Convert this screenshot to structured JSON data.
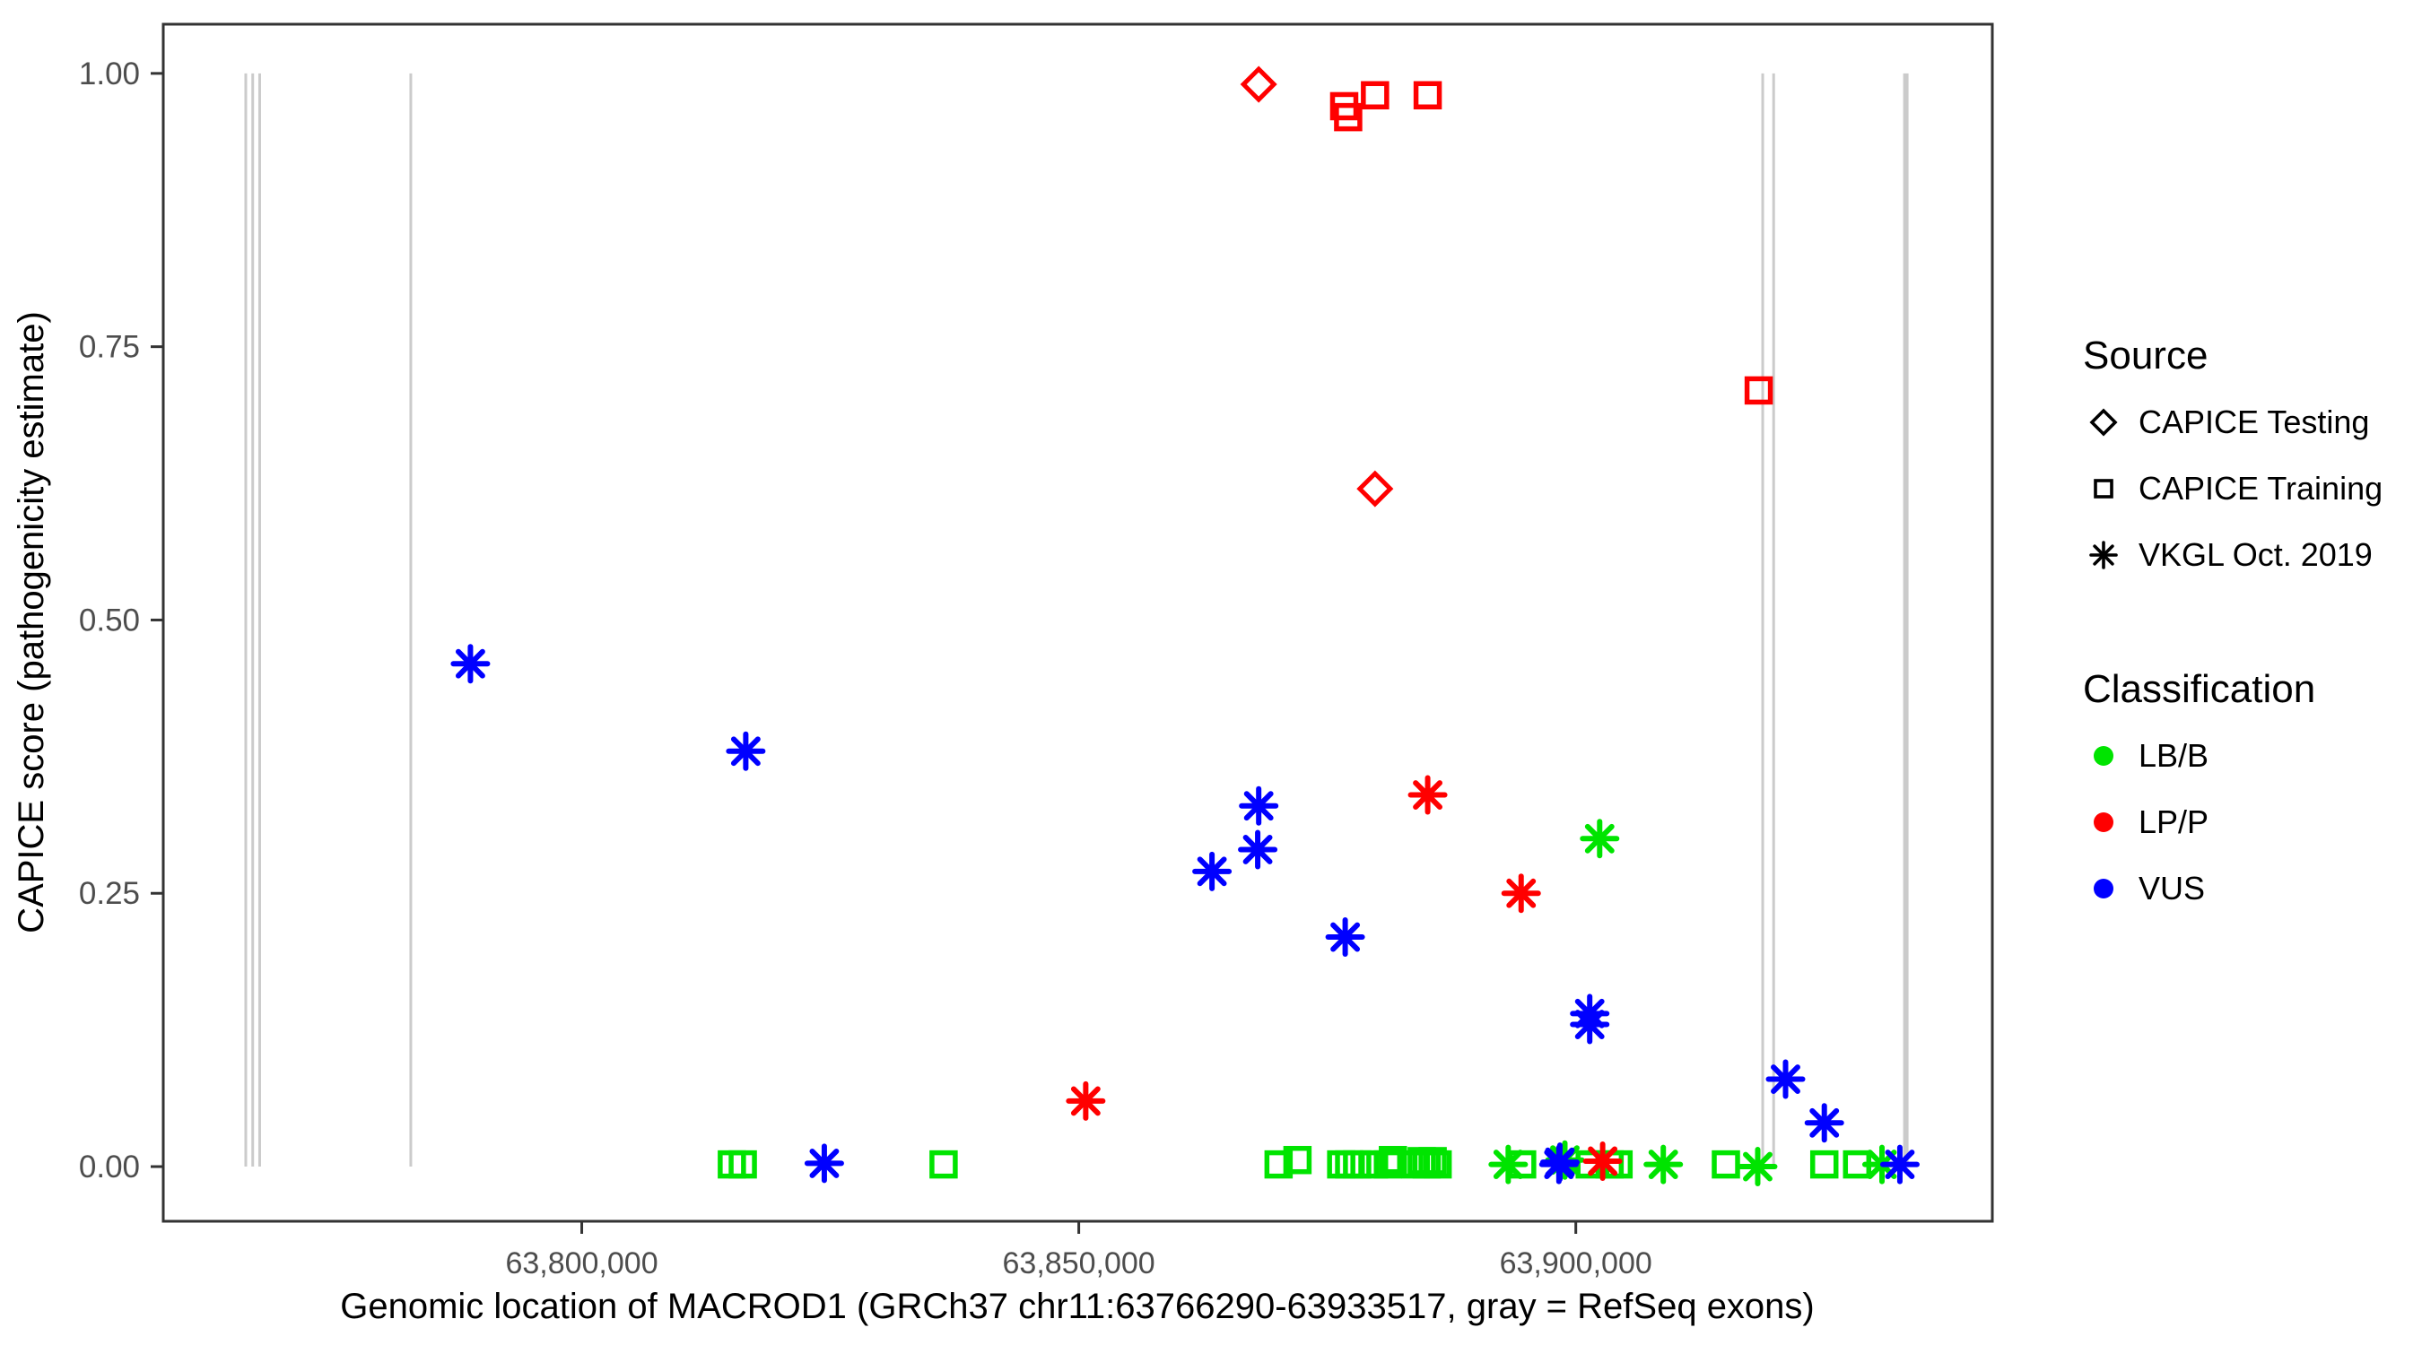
{
  "figure": {
    "x_axis_label": "Genomic location of MACROD1 (GRCh37 chr11:63766290-63933517, gray = RefSeq exons)",
    "y_axis_label": "CAPICE score (pathogenicity estimate)"
  },
  "legend": {
    "source": {
      "title": "Source",
      "items": [
        {
          "label": "CAPICE Testing",
          "marker": "diamond"
        },
        {
          "label": "CAPICE Training",
          "marker": "square"
        },
        {
          "label": "VKGL Oct. 2019",
          "marker": "asterisk"
        }
      ]
    },
    "classification": {
      "title": "Classification",
      "items": [
        {
          "label": "LB/B",
          "color": "#00E400"
        },
        {
          "label": "LP/P",
          "color": "#FF0000"
        },
        {
          "label": "VUS",
          "color": "#0000FF"
        }
      ]
    }
  },
  "colors": {
    "panel_border": "#333333",
    "tick": "#333333",
    "tick_label": "#4D4D4D",
    "axis_label": "#000000",
    "exon_gray": "#CBCBCB",
    "classification": {
      "LB/B": "#00E400",
      "LP/P": "#FF0000",
      "VUS": "#0000FF"
    }
  },
  "chart_data": {
    "type": "scatter",
    "title": "",
    "xlabel": "Genomic location of MACROD1 (GRCh37 chr11:63766290-63933517, gray = RefSeq exons)",
    "ylabel": "CAPICE score (pathogenicity estimate)",
    "xlim": [
      63757900,
      63941900
    ],
    "ylim": [
      -0.05,
      1.045
    ],
    "grid": false,
    "legend_position": "right",
    "x_ticks": [
      {
        "value": 63800000,
        "label": "63,800,000"
      },
      {
        "value": 63850000,
        "label": "63,850,000"
      },
      {
        "value": 63900000,
        "label": "63,900,000"
      }
    ],
    "y_ticks": [
      {
        "value": 0.0,
        "label": "0.00"
      },
      {
        "value": 0.25,
        "label": "0.25"
      },
      {
        "value": 0.5,
        "label": "0.50"
      },
      {
        "value": 0.75,
        "label": "0.75"
      },
      {
        "value": 1.0,
        "label": "1.00"
      }
    ],
    "refseq_exons_x": [
      {
        "pos": 63766200,
        "width": 3
      },
      {
        "pos": 63766900,
        "width": 3
      },
      {
        "pos": 63767600,
        "width": 3
      },
      {
        "pos": 63782800,
        "width": 3
      },
      {
        "pos": 63918800,
        "width": 3
      },
      {
        "pos": 63919900,
        "width": 3
      },
      {
        "pos": 63933200,
        "width": 6
      }
    ],
    "points": [
      {
        "pos": 63868100,
        "score": 0.99,
        "source": "CAPICE Testing",
        "classification": "LP/P"
      },
      {
        "pos": 63879800,
        "score": 0.62,
        "source": "CAPICE Testing",
        "classification": "LP/P"
      },
      {
        "pos": 63876700,
        "score": 0.97,
        "source": "CAPICE Training",
        "classification": "LP/P"
      },
      {
        "pos": 63877100,
        "score": 0.96,
        "source": "CAPICE Training",
        "classification": "LP/P"
      },
      {
        "pos": 63879800,
        "score": 0.98,
        "source": "CAPICE Training",
        "classification": "LP/P"
      },
      {
        "pos": 63885100,
        "score": 0.98,
        "source": "CAPICE Training",
        "classification": "LP/P"
      },
      {
        "pos": 63918400,
        "score": 0.71,
        "source": "CAPICE Training",
        "classification": "LP/P"
      },
      {
        "pos": 63815100,
        "score": 0.002,
        "source": "CAPICE Training",
        "classification": "LB/B"
      },
      {
        "pos": 63816200,
        "score": 0.002,
        "source": "CAPICE Training",
        "classification": "LB/B"
      },
      {
        "pos": 63836400,
        "score": 0.002,
        "source": "CAPICE Training",
        "classification": "LB/B"
      },
      {
        "pos": 63870100,
        "score": 0.002,
        "source": "CAPICE Training",
        "classification": "LB/B"
      },
      {
        "pos": 63872000,
        "score": 0.006,
        "source": "CAPICE Training",
        "classification": "LB/B"
      },
      {
        "pos": 63876400,
        "score": 0.002,
        "source": "CAPICE Training",
        "classification": "LB/B"
      },
      {
        "pos": 63877200,
        "score": 0.002,
        "source": "CAPICE Training",
        "classification": "LB/B"
      },
      {
        "pos": 63878000,
        "score": 0.002,
        "source": "CAPICE Training",
        "classification": "LB/B"
      },
      {
        "pos": 63879700,
        "score": 0.002,
        "source": "CAPICE Training",
        "classification": "LB/B"
      },
      {
        "pos": 63881100,
        "score": 0.002,
        "source": "CAPICE Training",
        "classification": "LB/B"
      },
      {
        "pos": 63881600,
        "score": 0.006,
        "source": "CAPICE Training",
        "classification": "LB/B"
      },
      {
        "pos": 63883900,
        "score": 0.002,
        "source": "CAPICE Training",
        "classification": "LB/B"
      },
      {
        "pos": 63884500,
        "score": 0.005,
        "source": "CAPICE Training",
        "classification": "LB/B"
      },
      {
        "pos": 63885000,
        "score": 0.002,
        "source": "CAPICE Training",
        "classification": "LB/B"
      },
      {
        "pos": 63885600,
        "score": 0.005,
        "source": "CAPICE Training",
        "classification": "LB/B"
      },
      {
        "pos": 63886100,
        "score": 0.002,
        "source": "CAPICE Training",
        "classification": "LB/B"
      },
      {
        "pos": 63894600,
        "score": 0.002,
        "source": "CAPICE Training",
        "classification": "LB/B"
      },
      {
        "pos": 63901400,
        "score": 0.002,
        "source": "CAPICE Training",
        "classification": "LB/B"
      },
      {
        "pos": 63903400,
        "score": 0.002,
        "source": "CAPICE Training",
        "classification": "LB/B"
      },
      {
        "pos": 63904300,
        "score": 0.002,
        "source": "CAPICE Training",
        "classification": "LB/B"
      },
      {
        "pos": 63915100,
        "score": 0.002,
        "source": "CAPICE Training",
        "classification": "LB/B"
      },
      {
        "pos": 63925000,
        "score": 0.002,
        "source": "CAPICE Training",
        "classification": "LB/B"
      },
      {
        "pos": 63928300,
        "score": 0.002,
        "source": "CAPICE Training",
        "classification": "LB/B"
      },
      {
        "pos": 63893200,
        "score": 0.002,
        "source": "VKGL Oct. 2019",
        "classification": "LB/B"
      },
      {
        "pos": 63898900,
        "score": 0.006,
        "source": "VKGL Oct. 2019",
        "classification": "LB/B"
      },
      {
        "pos": 63902400,
        "score": 0.3,
        "source": "VKGL Oct. 2019",
        "classification": "LB/B"
      },
      {
        "pos": 63908800,
        "score": 0.002,
        "source": "VKGL Oct. 2019",
        "classification": "LB/B"
      },
      {
        "pos": 63918300,
        "score": 0.0,
        "source": "VKGL Oct. 2019",
        "classification": "LB/B"
      },
      {
        "pos": 63930800,
        "score": 0.002,
        "source": "VKGL Oct. 2019",
        "classification": "LB/B"
      },
      {
        "pos": 63850700,
        "score": 0.06,
        "source": "VKGL Oct. 2019",
        "classification": "LP/P"
      },
      {
        "pos": 63885100,
        "score": 0.34,
        "source": "VKGL Oct. 2019",
        "classification": "LP/P"
      },
      {
        "pos": 63894500,
        "score": 0.25,
        "source": "VKGL Oct. 2019",
        "classification": "LP/P"
      },
      {
        "pos": 63902700,
        "score": 0.005,
        "source": "VKGL Oct. 2019",
        "classification": "LP/P"
      },
      {
        "pos": 63788800,
        "score": 0.46,
        "source": "VKGL Oct. 2019",
        "classification": "VUS"
      },
      {
        "pos": 63816500,
        "score": 0.38,
        "source": "VKGL Oct. 2019",
        "classification": "VUS"
      },
      {
        "pos": 63824400,
        "score": 0.003,
        "source": "VKGL Oct. 2019",
        "classification": "VUS"
      },
      {
        "pos": 63863400,
        "score": 0.27,
        "source": "VKGL Oct. 2019",
        "classification": "VUS"
      },
      {
        "pos": 63868000,
        "score": 0.29,
        "source": "VKGL Oct. 2019",
        "classification": "VUS"
      },
      {
        "pos": 63868100,
        "score": 0.33,
        "source": "VKGL Oct. 2019",
        "classification": "VUS"
      },
      {
        "pos": 63876800,
        "score": 0.21,
        "source": "VKGL Oct. 2019",
        "classification": "VUS"
      },
      {
        "pos": 63898300,
        "score": 0.002,
        "source": "VKGL Oct. 2019",
        "classification": "VUS"
      },
      {
        "pos": 63898400,
        "score": 0.004,
        "source": "VKGL Oct. 2019",
        "classification": "VUS"
      },
      {
        "pos": 63901400,
        "score": 0.14,
        "source": "VKGL Oct. 2019",
        "classification": "VUS"
      },
      {
        "pos": 63901400,
        "score": 0.13,
        "source": "VKGL Oct. 2019",
        "classification": "VUS"
      },
      {
        "pos": 63921100,
        "score": 0.08,
        "source": "VKGL Oct. 2019",
        "classification": "VUS"
      },
      {
        "pos": 63925000,
        "score": 0.04,
        "source": "VKGL Oct. 2019",
        "classification": "VUS"
      },
      {
        "pos": 63932600,
        "score": 0.002,
        "source": "VKGL Oct. 2019",
        "classification": "VUS"
      }
    ]
  }
}
